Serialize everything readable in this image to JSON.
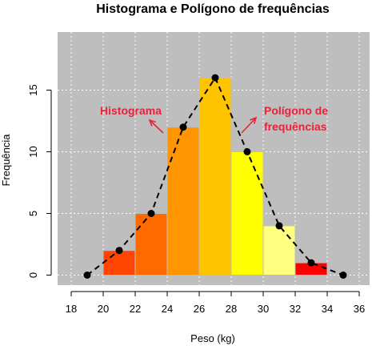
{
  "chart_data": {
    "type": "bar",
    "title": "Histograma e Polígono de frequências",
    "xlabel": "Peso (kg)",
    "ylabel": "Frequência",
    "xlim": [
      18,
      36
    ],
    "ylim": [
      0,
      16
    ],
    "x_ticks": [
      18,
      20,
      22,
      24,
      26,
      28,
      30,
      32,
      34,
      36
    ],
    "y_ticks": [
      0,
      5,
      10,
      15
    ],
    "grid": true,
    "background_color": "#bebebe",
    "bins": [
      {
        "from": 20,
        "to": 22,
        "count": 2,
        "color": "#ff4500"
      },
      {
        "from": 22,
        "to": 24,
        "count": 5,
        "color": "#ff6a00"
      },
      {
        "from": 24,
        "to": 26,
        "count": 12,
        "color": "#ff9500"
      },
      {
        "from": 26,
        "to": 28,
        "count": 16,
        "color": "#ffc400"
      },
      {
        "from": 28,
        "to": 30,
        "count": 10,
        "color": "#ffff00"
      },
      {
        "from": 30,
        "to": 32,
        "count": 4,
        "color": "#ffff80"
      },
      {
        "from": 32,
        "to": 34,
        "count": 1,
        "color": "#ff0000"
      }
    ],
    "polygon": {
      "x": [
        19,
        21,
        23,
        25,
        27,
        29,
        31,
        33,
        35
      ],
      "y": [
        0,
        2,
        5,
        12,
        16,
        10,
        4,
        1,
        0
      ],
      "line_style": "dashed",
      "color": "#000000"
    },
    "annotations": [
      {
        "lines": [
          "Histograma"
        ],
        "color": "#e8233a"
      },
      {
        "lines": [
          "Polígono de",
          "frequências"
        ],
        "color": "#e8233a"
      }
    ]
  }
}
